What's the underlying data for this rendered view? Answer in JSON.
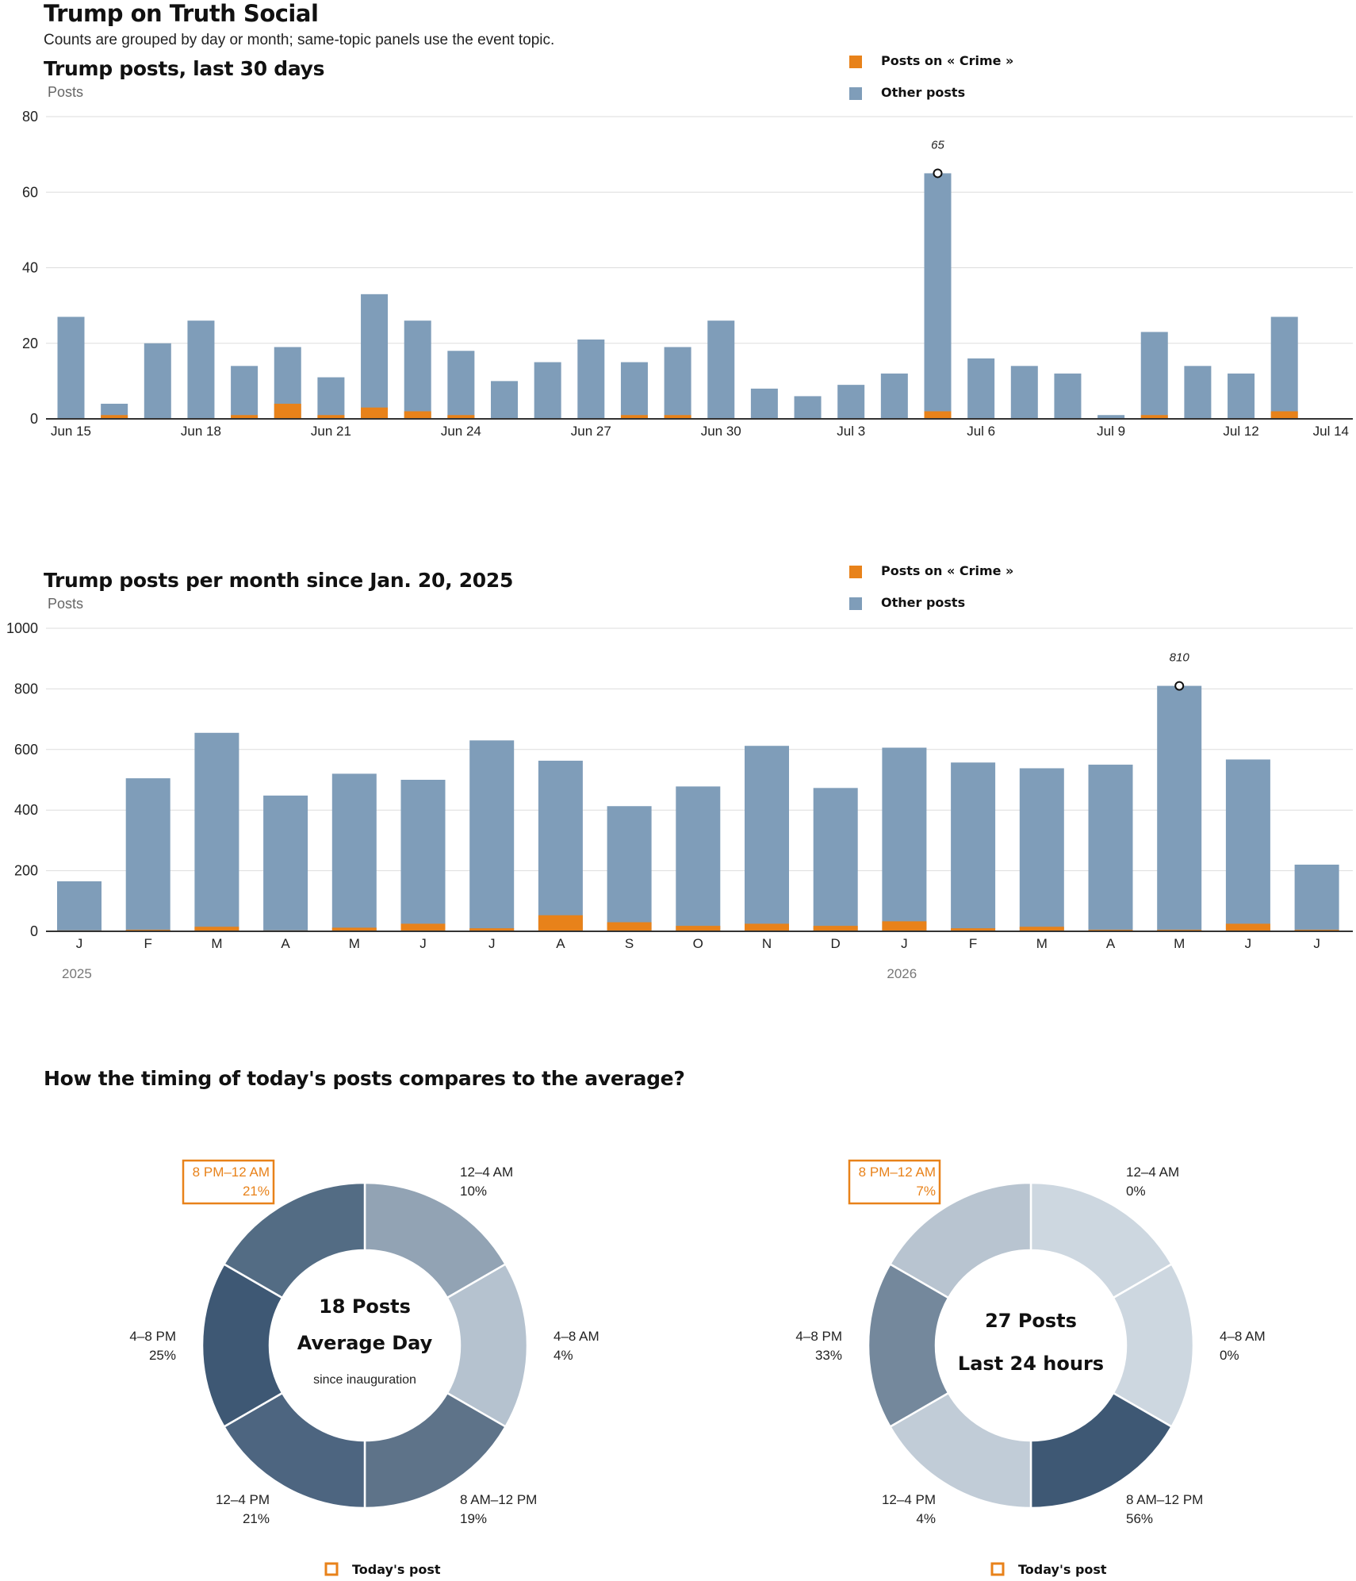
{
  "page": {
    "title": "Trump on Truth Social",
    "subtitle": "Counts are grouped by day or month; same-topic panels use the event topic."
  },
  "legend": {
    "topic_label": "Posts on « Crime »",
    "other_label": "Other posts"
  },
  "colors": {
    "topic": "#e8821a",
    "other": "#7f9db9",
    "axis": "#333333",
    "grid": "#dddddd",
    "today_highlight": "#e8821a"
  },
  "chart_data": [
    {
      "type": "bar",
      "stacked": true,
      "title": "Trump posts, last 30 days",
      "ylabel": "Posts",
      "ylim": [
        0,
        80
      ],
      "yticks": [
        0,
        20,
        40,
        60,
        80
      ],
      "x_tick_labels": [
        "Jun 15",
        "Jun 18",
        "Jun 21",
        "Jun 24",
        "Jun 27",
        "Jun 30",
        "Jul 3",
        "Jul 6",
        "Jul 9",
        "Jul 12",
        "Jul 14"
      ],
      "categories": [
        "Jun 15",
        "Jun 16",
        "Jun 17",
        "Jun 18",
        "Jun 19",
        "Jun 20",
        "Jun 21",
        "Jun 22",
        "Jun 23",
        "Jun 24",
        "Jun 25",
        "Jun 26",
        "Jun 27",
        "Jun 28",
        "Jun 29",
        "Jun 30",
        "Jul 1",
        "Jul 2",
        "Jul 3",
        "Jul 4",
        "Jul 5",
        "Jul 6",
        "Jul 7",
        "Jul 8",
        "Jul 9",
        "Jul 10",
        "Jul 11",
        "Jul 12",
        "Jul 13",
        "Jul 14"
      ],
      "series": [
        {
          "name": "Posts on « Crime »",
          "values": [
            0,
            1,
            0,
            0,
            1,
            4,
            1,
            3,
            2,
            1,
            0,
            0,
            0,
            1,
            1,
            0,
            0,
            0,
            0,
            0,
            2,
            0,
            0,
            0,
            0,
            1,
            0,
            0,
            2,
            0
          ]
        },
        {
          "name": "Other posts",
          "values": [
            27,
            3,
            20,
            26,
            13,
            15,
            10,
            30,
            24,
            17,
            10,
            15,
            21,
            14,
            18,
            26,
            8,
            6,
            9,
            12,
            63,
            16,
            14,
            12,
            1,
            22,
            14,
            12,
            25,
            0
          ]
        }
      ],
      "annotation": {
        "label": "65",
        "category": "Jul 5",
        "value": 65
      },
      "legend_position": "top-right",
      "grid": true
    },
    {
      "type": "bar",
      "stacked": true,
      "title": "Trump posts per month since Jan. 20, 2025",
      "ylabel": "Posts",
      "ylim": [
        0,
        1000
      ],
      "yticks": [
        0,
        200,
        400,
        600,
        800,
        1000
      ],
      "categories": [
        "J",
        "F",
        "M",
        "A",
        "M",
        "J",
        "J",
        "A",
        "S",
        "O",
        "N",
        "D",
        "J",
        "F",
        "M",
        "A",
        "M",
        "J",
        "J"
      ],
      "year_labels": [
        {
          "label": "2025",
          "index": 0
        },
        {
          "label": "2026",
          "index": 12
        }
      ],
      "series": [
        {
          "name": "Posts on « Crime »",
          "values": [
            3,
            5,
            15,
            3,
            12,
            25,
            10,
            53,
            30,
            18,
            25,
            18,
            33,
            10,
            15,
            5,
            5,
            25,
            5
          ]
        },
        {
          "name": "Other posts",
          "values": [
            162,
            500,
            640,
            445,
            508,
            475,
            620,
            510,
            383,
            460,
            587,
            455,
            573,
            547,
            523,
            545,
            805,
            542,
            215
          ]
        }
      ],
      "annotation": {
        "label": "810",
        "index": 16,
        "value": 810
      },
      "legend_position": "top-right",
      "grid": true
    },
    {
      "type": "pie",
      "donut": true,
      "title": "How the timing of today's posts compares to the average?",
      "charts": [
        {
          "center_line1": "18 Posts",
          "center_line2": "Average Day",
          "center_line3": "since inauguration",
          "slices": [
            {
              "label": "12–4 AM",
              "value": 10,
              "pct": "10%",
              "color": "#92a3b4"
            },
            {
              "label": "4–8 AM",
              "value": 4,
              "pct": "4%",
              "color": "#b5c2cf"
            },
            {
              "label": "8 AM–12 PM",
              "value": 19,
              "pct": "19%",
              "color": "#5e7389"
            },
            {
              "label": "12–4 PM",
              "value": 21,
              "pct": "21%",
              "color": "#4d6580"
            },
            {
              "label": "4–8 PM",
              "value": 25,
              "pct": "25%",
              "color": "#3e5874"
            },
            {
              "label": "8 PM–12 AM",
              "value": 21,
              "pct": "21%",
              "color": "#536c84",
              "today": true
            }
          ]
        },
        {
          "center_line1": "27 Posts",
          "center_line2": "Last 24 hours",
          "center_line3": "",
          "slices": [
            {
              "label": "12–4 AM",
              "value": 0,
              "pct": "0%",
              "color": "#cdd7e0"
            },
            {
              "label": "4–8 AM",
              "value": 0,
              "pct": "0%",
              "color": "#cdd7e0"
            },
            {
              "label": "8 AM–12 PM",
              "value": 56,
              "pct": "56%",
              "color": "#3e5874"
            },
            {
              "label": "12–4 PM",
              "value": 4,
              "pct": "4%",
              "color": "#c1ccd7"
            },
            {
              "label": "4–8 PM",
              "value": 33,
              "pct": "33%",
              "color": "#74889c"
            },
            {
              "label": "8 PM–12 AM",
              "value": 7,
              "pct": "7%",
              "color": "#b8c4d0",
              "today": true
            }
          ]
        }
      ],
      "legend_label": "Today's post"
    }
  ]
}
